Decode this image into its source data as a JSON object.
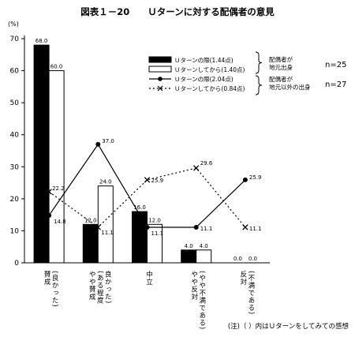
{
  "title": "図表１－20　　Ｕターンに対する配偶者の意見",
  "y_unit": "(%)",
  "note": "(注)（ ）内はＵターンをしてみての感想",
  "groups": [
    {
      "label": "配偶者が\n地元出身",
      "n": "n=25"
    },
    {
      "label": "配偶者が\n地元以外の出身",
      "n": "n=27"
    }
  ],
  "chart_data": {
    "type": "bar",
    "ylim": [
      0,
      70
    ],
    "yticks": [
      0,
      10,
      20,
      30,
      40,
      50,
      60,
      70
    ],
    "categories": [
      [
        "賛成",
        "(良かった)"
      ],
      [
        "やや賛成",
        "(ある程度",
        "良かった)"
      ],
      [
        "中立"
      ],
      [
        "やや反対",
        "(やや不満である)"
      ],
      [
        "反対",
        "(不満である)"
      ]
    ],
    "series": [
      {
        "name": "Ｕターンの際(1.44点)",
        "kind": "bar",
        "fill": "#000000",
        "values": [
          68.0,
          12.0,
          16.0,
          4.0,
          0.0
        ],
        "labels": [
          "68.0",
          "12.0",
          "16.0",
          "4.0",
          "0.0"
        ]
      },
      {
        "name": "Ｕターンしてから(1.40点)",
        "kind": "bar",
        "fill": "#ffffff",
        "values": [
          60.0,
          24.0,
          12.0,
          4.0,
          0.0
        ],
        "labels": [
          "60.0",
          "24.0",
          "12.0",
          "4.0",
          "0.0"
        ]
      },
      {
        "name": "Ｕターンの際(2.04点)",
        "kind": "line",
        "style": "solid",
        "marker": "dot",
        "values": [
          14.8,
          37.0,
          11.1,
          11.1,
          25.9
        ],
        "labels": [
          "14.8",
          "37.0",
          "11.1",
          "11.1",
          "25.9"
        ]
      },
      {
        "name": "Ｕターンしてから(0.84点)",
        "kind": "line",
        "style": "dotted",
        "marker": "x",
        "values": [
          22.2,
          11.1,
          25.9,
          29.6,
          11.1
        ],
        "labels": [
          "22.2",
          "11.1",
          "25.9",
          "29.6",
          "11.1"
        ]
      }
    ]
  }
}
